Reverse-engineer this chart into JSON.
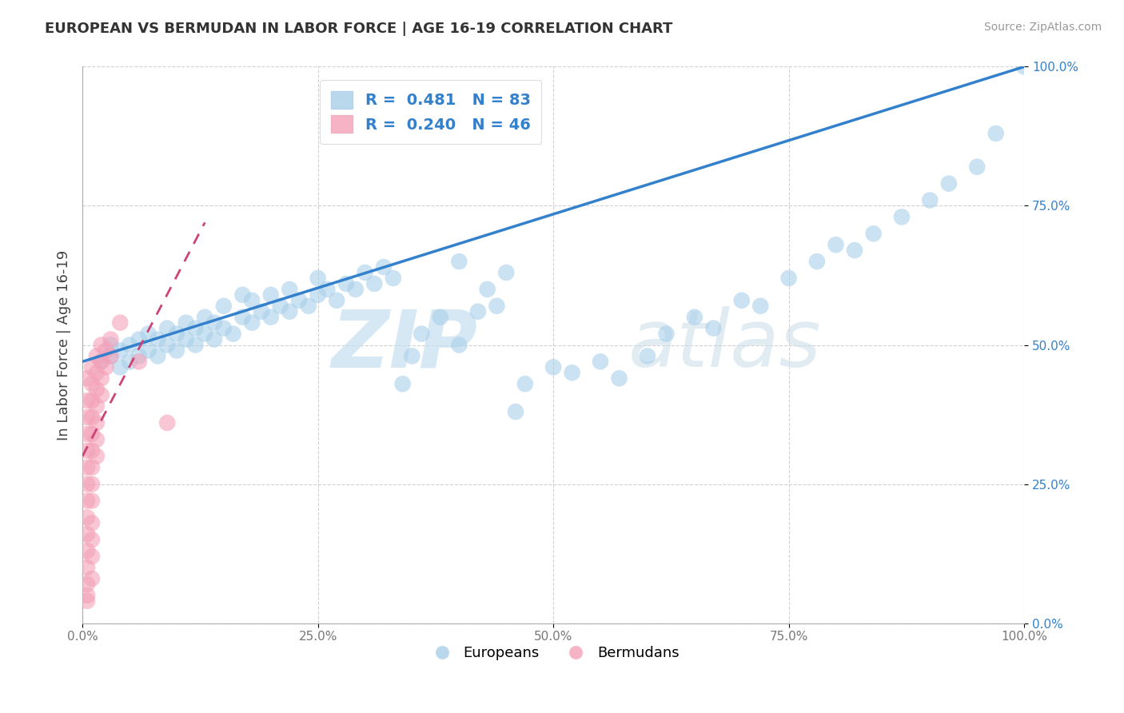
{
  "title": "EUROPEAN VS BERMUDAN IN LABOR FORCE | AGE 16-19 CORRELATION CHART",
  "source": "Source: ZipAtlas.com",
  "ylabel": "In Labor Force | Age 16-19",
  "xlim": [
    0.0,
    1.0
  ],
  "ylim": [
    0.0,
    1.0
  ],
  "xticks": [
    0.0,
    0.25,
    0.5,
    0.75,
    1.0
  ],
  "yticks": [
    0.0,
    0.25,
    0.5,
    0.75,
    1.0
  ],
  "xticklabels": [
    "0.0%",
    "25.0%",
    "50.0%",
    "75.0%",
    "100.0%"
  ],
  "yticklabels": [
    "0.0%",
    "25.0%",
    "50.0%",
    "75.0%",
    "100.0%"
  ],
  "watermark_zip": "ZIP",
  "watermark_atlas": "atlas",
  "legend_r1": "R =  0.481   N = 83",
  "legend_r2": "R =  0.240   N = 46",
  "blue_color": "#a8cfe8",
  "pink_color": "#f4a0b8",
  "blue_line_color": "#3380cc",
  "pink_line_color": "#cc4477",
  "blue_scatter": [
    [
      0.02,
      0.47
    ],
    [
      0.03,
      0.48
    ],
    [
      0.03,
      0.5
    ],
    [
      0.04,
      0.46
    ],
    [
      0.04,
      0.49
    ],
    [
      0.05,
      0.47
    ],
    [
      0.05,
      0.5
    ],
    [
      0.06,
      0.48
    ],
    [
      0.06,
      0.51
    ],
    [
      0.07,
      0.49
    ],
    [
      0.07,
      0.52
    ],
    [
      0.08,
      0.48
    ],
    [
      0.08,
      0.51
    ],
    [
      0.09,
      0.5
    ],
    [
      0.09,
      0.53
    ],
    [
      0.1,
      0.49
    ],
    [
      0.1,
      0.52
    ],
    [
      0.11,
      0.51
    ],
    [
      0.11,
      0.54
    ],
    [
      0.12,
      0.5
    ],
    [
      0.12,
      0.53
    ],
    [
      0.13,
      0.52
    ],
    [
      0.13,
      0.55
    ],
    [
      0.14,
      0.51
    ],
    [
      0.14,
      0.54
    ],
    [
      0.15,
      0.53
    ],
    [
      0.15,
      0.57
    ],
    [
      0.16,
      0.52
    ],
    [
      0.17,
      0.55
    ],
    [
      0.17,
      0.59
    ],
    [
      0.18,
      0.54
    ],
    [
      0.18,
      0.58
    ],
    [
      0.19,
      0.56
    ],
    [
      0.2,
      0.55
    ],
    [
      0.2,
      0.59
    ],
    [
      0.21,
      0.57
    ],
    [
      0.22,
      0.56
    ],
    [
      0.22,
      0.6
    ],
    [
      0.23,
      0.58
    ],
    [
      0.24,
      0.57
    ],
    [
      0.25,
      0.59
    ],
    [
      0.25,
      0.62
    ],
    [
      0.26,
      0.6
    ],
    [
      0.27,
      0.58
    ],
    [
      0.28,
      0.61
    ],
    [
      0.29,
      0.6
    ],
    [
      0.3,
      0.63
    ],
    [
      0.31,
      0.61
    ],
    [
      0.32,
      0.64
    ],
    [
      0.33,
      0.62
    ],
    [
      0.34,
      0.43
    ],
    [
      0.35,
      0.48
    ],
    [
      0.36,
      0.52
    ],
    [
      0.38,
      0.55
    ],
    [
      0.4,
      0.5
    ],
    [
      0.4,
      0.65
    ],
    [
      0.42,
      0.56
    ],
    [
      0.43,
      0.6
    ],
    [
      0.44,
      0.57
    ],
    [
      0.45,
      0.63
    ],
    [
      0.46,
      0.38
    ],
    [
      0.47,
      0.43
    ],
    [
      0.5,
      0.46
    ],
    [
      0.52,
      0.45
    ],
    [
      0.55,
      0.47
    ],
    [
      0.57,
      0.44
    ],
    [
      0.6,
      0.48
    ],
    [
      0.62,
      0.52
    ],
    [
      0.65,
      0.55
    ],
    [
      0.67,
      0.53
    ],
    [
      0.7,
      0.58
    ],
    [
      0.72,
      0.57
    ],
    [
      0.75,
      0.62
    ],
    [
      0.78,
      0.65
    ],
    [
      0.8,
      0.68
    ],
    [
      0.82,
      0.67
    ],
    [
      0.84,
      0.7
    ],
    [
      0.87,
      0.73
    ],
    [
      0.9,
      0.76
    ],
    [
      0.92,
      0.79
    ],
    [
      0.95,
      0.82
    ],
    [
      0.97,
      0.88
    ],
    [
      1.0,
      1.0
    ]
  ],
  "pink_scatter": [
    [
      0.005,
      0.44
    ],
    [
      0.005,
      0.4
    ],
    [
      0.005,
      0.37
    ],
    [
      0.005,
      0.34
    ],
    [
      0.005,
      0.31
    ],
    [
      0.005,
      0.28
    ],
    [
      0.005,
      0.25
    ],
    [
      0.005,
      0.22
    ],
    [
      0.005,
      0.19
    ],
    [
      0.005,
      0.16
    ],
    [
      0.005,
      0.13
    ],
    [
      0.005,
      0.1
    ],
    [
      0.005,
      0.07
    ],
    [
      0.005,
      0.04
    ],
    [
      0.01,
      0.46
    ],
    [
      0.01,
      0.43
    ],
    [
      0.01,
      0.4
    ],
    [
      0.01,
      0.37
    ],
    [
      0.01,
      0.34
    ],
    [
      0.01,
      0.31
    ],
    [
      0.01,
      0.28
    ],
    [
      0.01,
      0.25
    ],
    [
      0.01,
      0.22
    ],
    [
      0.01,
      0.18
    ],
    [
      0.01,
      0.15
    ],
    [
      0.01,
      0.12
    ],
    [
      0.01,
      0.08
    ],
    [
      0.015,
      0.48
    ],
    [
      0.015,
      0.45
    ],
    [
      0.015,
      0.42
    ],
    [
      0.015,
      0.39
    ],
    [
      0.015,
      0.36
    ],
    [
      0.015,
      0.33
    ],
    [
      0.015,
      0.3
    ],
    [
      0.02,
      0.5
    ],
    [
      0.02,
      0.47
    ],
    [
      0.02,
      0.44
    ],
    [
      0.02,
      0.41
    ],
    [
      0.025,
      0.49
    ],
    [
      0.025,
      0.46
    ],
    [
      0.03,
      0.48
    ],
    [
      0.03,
      0.51
    ],
    [
      0.04,
      0.54
    ],
    [
      0.06,
      0.47
    ],
    [
      0.09,
      0.36
    ],
    [
      0.005,
      0.05
    ]
  ],
  "blue_line_x": [
    0.0,
    1.0
  ],
  "blue_line_y": [
    0.47,
    1.0
  ],
  "pink_line_x": [
    0.0,
    0.13
  ],
  "pink_line_y": [
    0.3,
    0.72
  ]
}
